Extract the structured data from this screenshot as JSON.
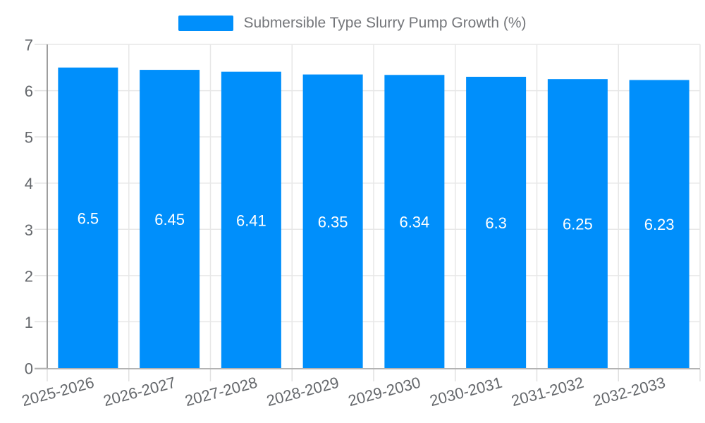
{
  "chart_data": {
    "type": "bar",
    "title": "Submersible Type Slurry Pump Growth (%)",
    "categories": [
      "2025-2026",
      "2026-2027",
      "2027-2028",
      "2028-2029",
      "2029-2030",
      "2030-2031",
      "2031-2032",
      "2032-2033"
    ],
    "values": [
      6.5,
      6.45,
      6.41,
      6.35,
      6.34,
      6.3,
      6.25,
      6.23
    ],
    "value_labels": [
      "6.5",
      "6.45",
      "6.41",
      "6.35",
      "6.34",
      "6.3",
      "6.25",
      "6.23"
    ],
    "xlabel": "",
    "ylabel": "",
    "ylim": [
      0,
      7
    ],
    "ytick_labels": [
      "0",
      "1",
      "2",
      "3",
      "4",
      "5",
      "6",
      "7"
    ],
    "grid": true,
    "legend_position": "top",
    "colors": {
      "bar": "#008FFB",
      "value_label": "#ffffff",
      "axis_text": "#64676b",
      "legend_text": "#74767a",
      "gridline": "#e7e7e7",
      "tick": "#e0e0e0",
      "y_axis_line": "#9e9e9e",
      "x_axis_line": "#b3b3b3"
    }
  }
}
